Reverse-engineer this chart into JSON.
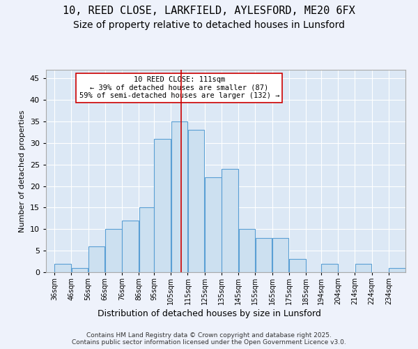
{
  "title_line1": "10, REED CLOSE, LARKFIELD, AYLESFORD, ME20 6FX",
  "title_line2": "Size of property relative to detached houses in Lunsford",
  "xlabel": "Distribution of detached houses by size in Lunsford",
  "ylabel": "Number of detached properties",
  "footer": "Contains HM Land Registry data © Crown copyright and database right 2025.\nContains public sector information licensed under the Open Government Licence v3.0.",
  "bin_labels": [
    "36sqm",
    "46sqm",
    "56sqm",
    "66sqm",
    "76sqm",
    "86sqm",
    "95sqm",
    "105sqm",
    "115sqm",
    "125sqm",
    "135sqm",
    "145sqm",
    "155sqm",
    "165sqm",
    "175sqm",
    "185sqm",
    "194sqm",
    "204sqm",
    "214sqm",
    "224sqm",
    "234sqm"
  ],
  "bin_edges": [
    36,
    46,
    56,
    66,
    76,
    86,
    95,
    105,
    115,
    125,
    135,
    145,
    155,
    165,
    175,
    185,
    194,
    204,
    214,
    224,
    234
  ],
  "bar_values": [
    2,
    1,
    6,
    10,
    12,
    15,
    31,
    35,
    33,
    22,
    24,
    10,
    8,
    8,
    3,
    0,
    2,
    0,
    2,
    0,
    1
  ],
  "bar_color": "#cce0f0",
  "bar_edge_color": "#5a9fd4",
  "vline_x": 111,
  "vline_color": "#cc0000",
  "annotation_text": "10 REED CLOSE: 111sqm\n← 39% of detached houses are smaller (87)\n59% of semi-detached houses are larger (132) →",
  "annotation_box_color": "#ffffff",
  "annotation_box_edge": "#cc0000",
  "ylim": [
    0,
    47
  ],
  "yticks": [
    0,
    5,
    10,
    15,
    20,
    25,
    30,
    35,
    40,
    45
  ],
  "bg_color": "#eef2fb",
  "plot_bg_color": "#dce8f5",
  "grid_color": "#ffffff",
  "title_fontsize": 11,
  "subtitle_fontsize": 10
}
